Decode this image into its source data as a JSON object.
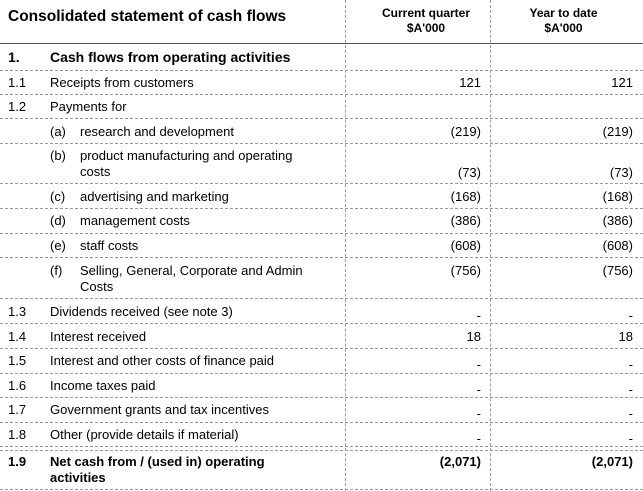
{
  "header": {
    "title": "Consolidated statement of cash flows",
    "col_current": [
      "Current quarter",
      "$A'000"
    ],
    "col_ytd": [
      "Year to date",
      "$A'000"
    ]
  },
  "section": {
    "num": "1.",
    "title": "Cash flows from operating activities"
  },
  "rows": {
    "r11": {
      "num": "1.1",
      "label": "Receipts from customers",
      "cq": "121",
      "ytd": "121"
    },
    "r12": {
      "num": "1.2",
      "label": "Payments for"
    },
    "a": {
      "letter": "(a)",
      "label": "research and development",
      "cq": "(219)",
      "ytd": "(219)"
    },
    "b": {
      "letter": "(b)",
      "label": "product manufacturing and operating costs",
      "cq": "(73)",
      "ytd": "(73)"
    },
    "c": {
      "letter": "(c)",
      "label": "advertising and marketing",
      "cq": "(168)",
      "ytd": "(168)"
    },
    "d": {
      "letter": "(d)",
      "label": "management costs",
      "cq": "(386)",
      "ytd": "(386)"
    },
    "e": {
      "letter": "(e)",
      "label": "staff costs",
      "cq": "(608)",
      "ytd": "(608)"
    },
    "f": {
      "letter": "(f)",
      "label": "Selling, General, Corporate and Admin Costs",
      "cq": "(756)",
      "ytd": "(756)"
    },
    "r13": {
      "num": "1.3",
      "label": "Dividends received (see note 3)",
      "cq": "-",
      "ytd": "-"
    },
    "r14": {
      "num": "1.4",
      "label": "Interest received",
      "cq": "18",
      "ytd": "18"
    },
    "r15": {
      "num": "1.5",
      "label": "Interest and other costs of finance paid",
      "cq": "-",
      "ytd": "-"
    },
    "r16": {
      "num": "1.6",
      "label": "Income taxes paid",
      "cq": "-",
      "ytd": "-"
    },
    "r17": {
      "num": "1.7",
      "label": "Government grants and tax incentives",
      "cq": "-",
      "ytd": "-"
    },
    "r18": {
      "num": "1.8",
      "label": "Other (provide details if material)",
      "cq": "-",
      "ytd": "-"
    },
    "r19": {
      "num": "1.9",
      "label": "Net cash from / (used in) operating activities",
      "cq": "(2,071)",
      "ytd": "(2,071)"
    }
  }
}
